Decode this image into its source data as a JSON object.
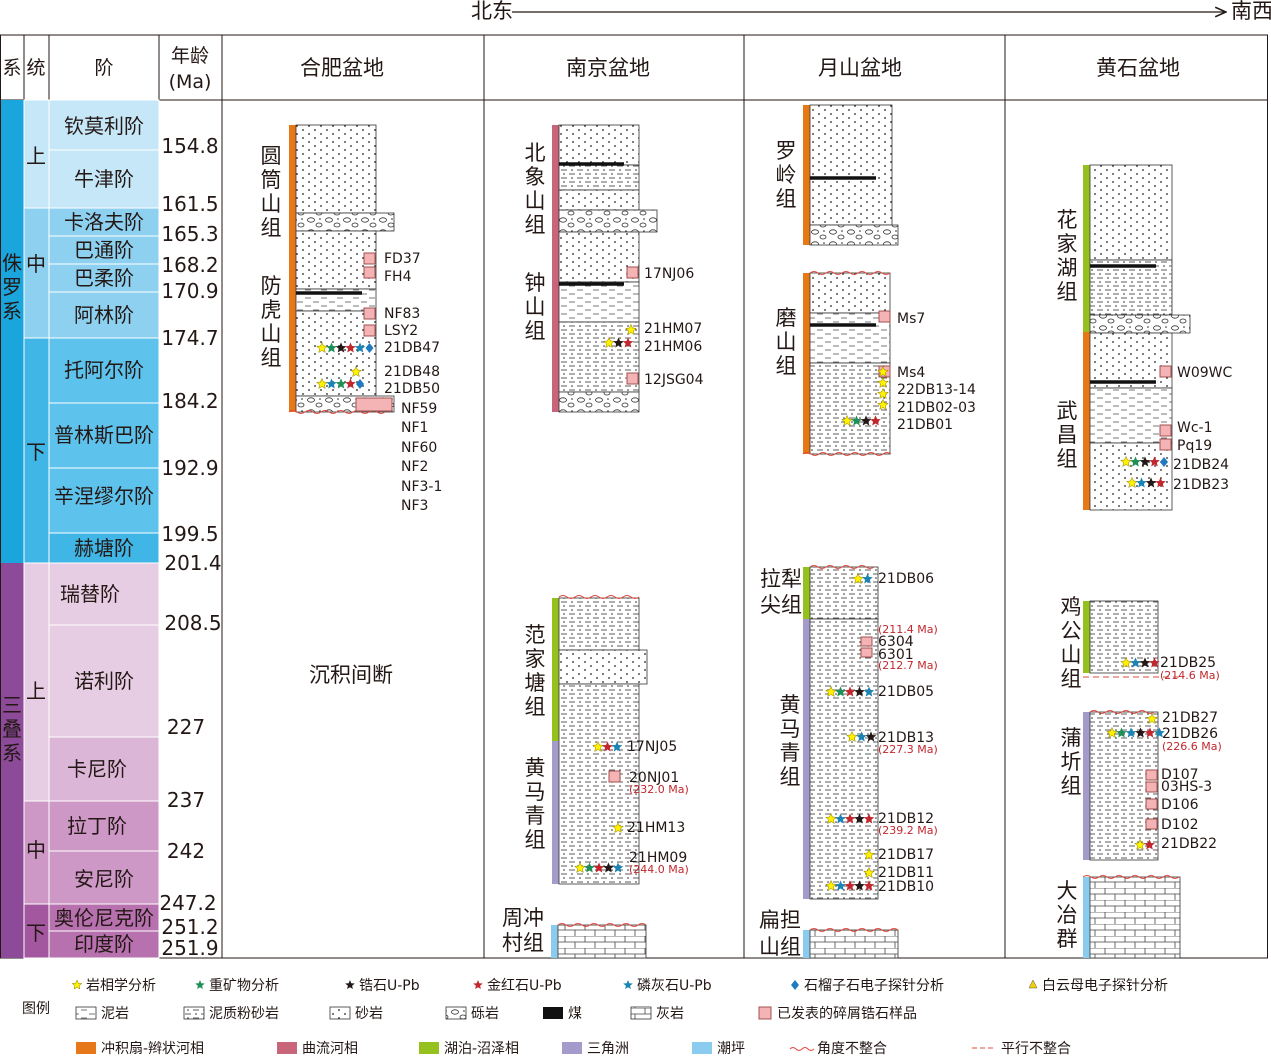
{
  "direction": {
    "left": "北东",
    "right": "南西"
  },
  "headers": {
    "system": "系",
    "series": "统",
    "stage": "阶",
    "age_line1": "年龄",
    "age_line2": "(Ma)"
  },
  "basins": [
    "合肥盆地",
    "南京盆地",
    "月山盆地",
    "黄石盆地"
  ],
  "systems": {
    "jurassic": "侏罗系",
    "triassic": "三叠系"
  },
  "series": {
    "upper": "上",
    "middle": "中",
    "lower": "下"
  },
  "stages": {
    "jurassic": [
      "钦莫利阶",
      "牛津阶",
      "卡洛夫阶",
      "巴通阶",
      "巴柔阶",
      "阿林阶",
      "托阿尔阶",
      "普林斯巴阶",
      "辛涅缪尔阶",
      "赫塘阶"
    ],
    "triassic": [
      "瑞替阶",
      "诺利阶",
      "卡尼阶",
      "拉丁阶",
      "安尼阶",
      "奥伦尼克阶",
      "印度阶"
    ]
  },
  "ages": [
    "154.8",
    "161.5",
    "165.3",
    "168.2",
    "170.9",
    "174.7",
    "184.2",
    "192.9",
    "199.5",
    "201.4",
    "208.5",
    "227",
    "237",
    "242",
    "247.2",
    "251.2",
    "251.9"
  ],
  "hefei": {
    "formations": [
      "圆筒山组",
      "防虎山组"
    ],
    "samples": [
      "FD37",
      "FH4",
      "NF83",
      "LSY2",
      "21DB47",
      "21DB48",
      "21DB50",
      "NF59",
      "NF1",
      "NF60",
      "NF2",
      "NF3-1",
      "NF3"
    ],
    "gap": "沉积间断"
  },
  "nanjing": {
    "formations": [
      "北象山组",
      "钟山组",
      "范家塘组",
      "黄马青组",
      "周冲村组"
    ],
    "samples": [
      "17NJ06",
      "21HM07",
      "21HM06",
      "12JSG04",
      "17NJ05",
      "20NJ01",
      "21HM13",
      "21HM09"
    ],
    "ages": [
      "(232.0 Ma)",
      "(244.0 Ma)"
    ]
  },
  "yueshan": {
    "formations": [
      "罗岭组",
      "磨山组",
      "拉犁尖组",
      "黄马青组",
      "扁担山组"
    ],
    "samples": [
      "Ms7",
      "Ms4",
      "22DB13-14",
      "21DB02-03",
      "21DB01",
      "21DB06",
      "6304",
      "6301",
      "21DB05",
      "21DB13",
      "21DB12",
      "21DB17",
      "21DB11",
      "21DB10"
    ],
    "ages": [
      "(211.4 Ma)",
      "(212.7 Ma)",
      "(227.3 Ma)",
      "(239.2 Ma)"
    ]
  },
  "huangshi": {
    "formations": [
      "花家湖组",
      "武昌组",
      "鸡公山组",
      "蒲圻组",
      "大冶群"
    ],
    "samples": [
      "W09WC",
      "Wc-1",
      "Pq19",
      "21DB24",
      "21DB23",
      "21DB25",
      "21DB27",
      "21DB26",
      "D107",
      "03HS-3",
      "D106",
      "D102",
      "21DB22"
    ],
    "ages": [
      "(214.6 Ma)",
      "(226.6 Ma)"
    ]
  },
  "legend": {
    "title": "图例",
    "analyses": [
      "岩相学分析",
      "重矿物分析",
      "锆石U-Pb",
      "金红石U-Pb",
      "磷灰石U-Pb",
      "石榴子石电子探针分析",
      "白云母电子探针分析"
    ],
    "lithologies": [
      "泥岩",
      "泥质粉砂岩",
      "砂岩",
      "砾岩",
      "煤",
      "灰岩",
      "已发表的碎屑锆石样品"
    ],
    "facies": [
      "冲积扇-辫状河相",
      "曲流河相",
      "湖泊-沼泽相",
      "三角洲",
      "潮坪",
      "角度不整合",
      "平行不整合"
    ]
  },
  "colors": {
    "jurassic_system": "#1aa6dc",
    "jurassic_stage_light": "#c5e7f7",
    "jurassic_stage_mid": "#8dd0ef",
    "triassic_system": "#8c4a99",
    "triassic_stage_light": "#e7cde3",
    "triassic_stage_mid": "#cd98c6",
    "alluvial": "#e77817",
    "meander": "#c9657a",
    "lake": "#95c11f",
    "delta": "#a49bca",
    "tidal": "#8bcbed",
    "star_litho": "#fff100",
    "star_heavy": "#1e8f56",
    "star_zircon": "#231815",
    "star_rutile": "#c2272d",
    "star_apatite": "#1b84b3",
    "garnet": "#1f7bc0",
    "muscovite": "#f2d200",
    "sample_box": "#f4b3b5"
  }
}
